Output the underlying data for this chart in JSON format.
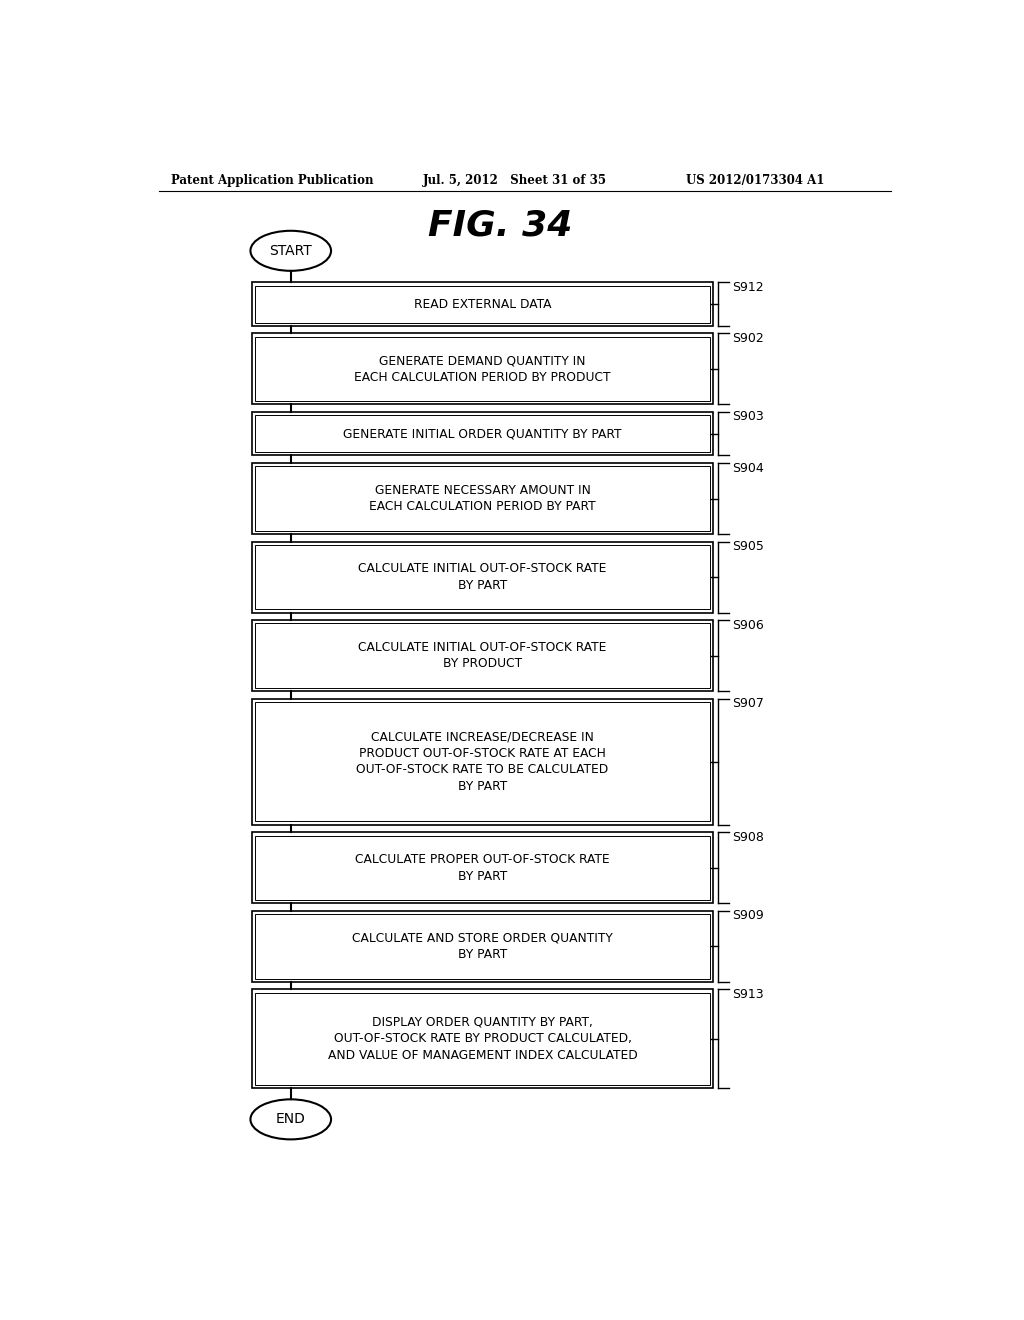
{
  "title": "FIG. 34",
  "header_left": "Patent Application Publication",
  "header_mid": "Jul. 5, 2012   Sheet 31 of 35",
  "header_right": "US 2012/0173304 A1",
  "steps": [
    {
      "label": "S912",
      "text": "READ EXTERNAL DATA",
      "lines": 1
    },
    {
      "label": "S902",
      "text": "GENERATE DEMAND QUANTITY IN\nEACH CALCULATION PERIOD BY PRODUCT",
      "lines": 2
    },
    {
      "label": "S903",
      "text": "GENERATE INITIAL ORDER QUANTITY BY PART",
      "lines": 1
    },
    {
      "label": "S904",
      "text": "GENERATE NECESSARY AMOUNT IN\nEACH CALCULATION PERIOD BY PART",
      "lines": 2
    },
    {
      "label": "S905",
      "text": "CALCULATE INITIAL OUT-OF-STOCK RATE\nBY PART",
      "lines": 2
    },
    {
      "label": "S906",
      "text": "CALCULATE INITIAL OUT-OF-STOCK RATE\nBY PRODUCT",
      "lines": 2
    },
    {
      "label": "S907",
      "text": "CALCULATE INCREASE/DECREASE IN\nPRODUCT OUT-OF-STOCK RATE AT EACH\nOUT-OF-STOCK RATE TO BE CALCULATED\nBY PART",
      "lines": 4
    },
    {
      "label": "S908",
      "text": "CALCULATE PROPER OUT-OF-STOCK RATE\nBY PART",
      "lines": 2
    },
    {
      "label": "S909",
      "text": "CALCULATE AND STORE ORDER QUANTITY\nBY PART",
      "lines": 2
    },
    {
      "label": "S913",
      "text": "DISPLAY ORDER QUANTITY BY PART,\nOUT-OF-STOCK RATE BY PRODUCT CALCULATED,\nAND VALUE OF MANAGEMENT INDEX CALCULATED",
      "lines": 3
    }
  ],
  "bg_color": "#ffffff",
  "box_edge_color": "#000000",
  "text_color": "#000000",
  "line_color": "#000000",
  "fig_width": 10.24,
  "fig_height": 13.2,
  "dpi": 100
}
